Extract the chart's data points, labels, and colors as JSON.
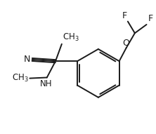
{
  "bg_color": "#ffffff",
  "line_color": "#1a1a1a",
  "line_width": 1.4,
  "font_size": 8.5,
  "figsize": [
    2.22,
    1.91
  ],
  "dpi": 100,
  "xlim": [
    0,
    10
  ],
  "ylim": [
    0,
    8.6
  ]
}
